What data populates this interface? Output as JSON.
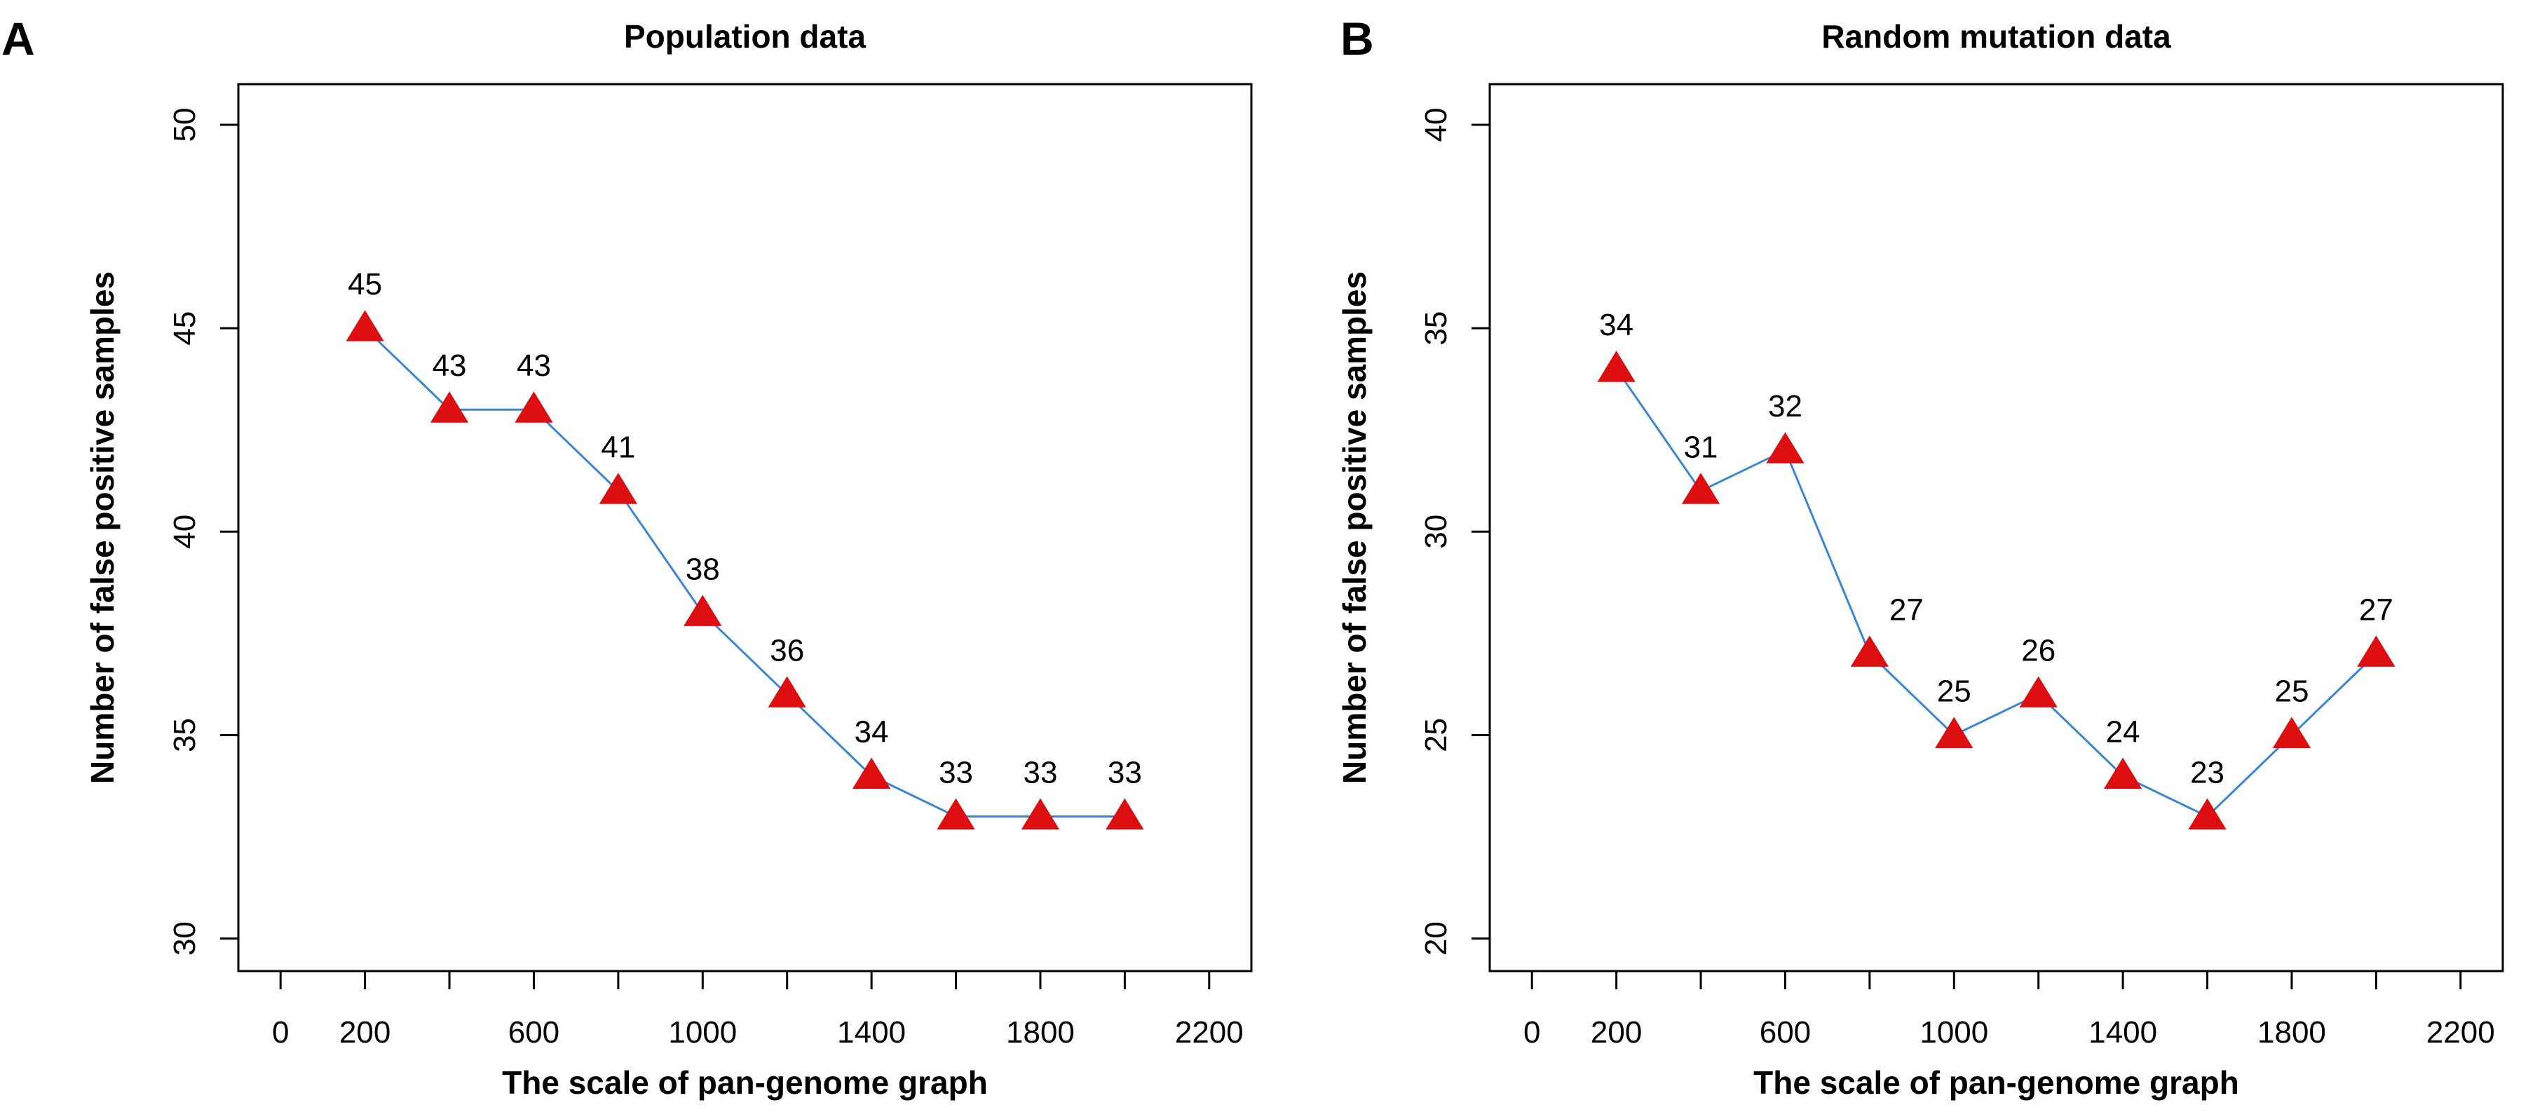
{
  "colors": {
    "line": "#3a86d4",
    "marker": "#dd0e10",
    "axis": "#000000"
  },
  "chart_data": [
    {
      "panel_label": "A",
      "type": "line",
      "title": "Population data",
      "xlabel": "The scale of pan-genome graph",
      "ylabel": "Number of false positive samples",
      "x": [
        200,
        400,
        600,
        800,
        1000,
        1200,
        1400,
        1600,
        1800,
        2000
      ],
      "values": [
        45,
        43,
        43,
        41,
        38,
        36,
        34,
        33,
        33,
        33
      ],
      "data_labels": [
        "45",
        "43",
        "43",
        "41",
        "38",
        "36",
        "34",
        "33",
        "33",
        "33"
      ],
      "xlim": [
        -100,
        2300
      ],
      "ylim": [
        29.2,
        51
      ],
      "x_ticks": [
        0,
        200,
        400,
        600,
        800,
        1000,
        1200,
        1400,
        1600,
        1800,
        2000,
        2200
      ],
      "x_tick_labels": [
        "0",
        "200",
        "",
        "600",
        "",
        "1000",
        "",
        "1400",
        "",
        "1800",
        "",
        "2200"
      ],
      "y_ticks": [
        30,
        35,
        40,
        45,
        50
      ],
      "y_tick_labels": [
        "30",
        "35",
        "40",
        "45",
        "50"
      ],
      "grid": false,
      "marker": "triangle"
    },
    {
      "panel_label": "B",
      "type": "line",
      "title": "Random mutation data",
      "xlabel": "The scale of pan-genome graph",
      "ylabel": "Number of false positive samples",
      "x": [
        200,
        400,
        600,
        800,
        1000,
        1200,
        1400,
        1600,
        1800,
        2000
      ],
      "values": [
        34,
        31,
        32,
        27,
        25,
        26,
        24,
        23,
        25,
        27
      ],
      "data_labels": [
        "34",
        "31",
        "32",
        "27",
        "25",
        "26",
        "24",
        "23",
        "25",
        "27"
      ],
      "xlim": [
        -100,
        2300
      ],
      "ylim": [
        19.2,
        41
      ],
      "x_ticks": [
        0,
        200,
        400,
        600,
        800,
        1000,
        1200,
        1400,
        1600,
        1800,
        2000,
        2200
      ],
      "x_tick_labels": [
        "0",
        "200",
        "",
        "600",
        "",
        "1000",
        "",
        "1400",
        "",
        "1800",
        "",
        "2200"
      ],
      "y_ticks": [
        20,
        25,
        30,
        35,
        40
      ],
      "y_tick_labels": [
        "20",
        "25",
        "30",
        "35",
        "40"
      ],
      "grid": false,
      "marker": "triangle"
    }
  ]
}
